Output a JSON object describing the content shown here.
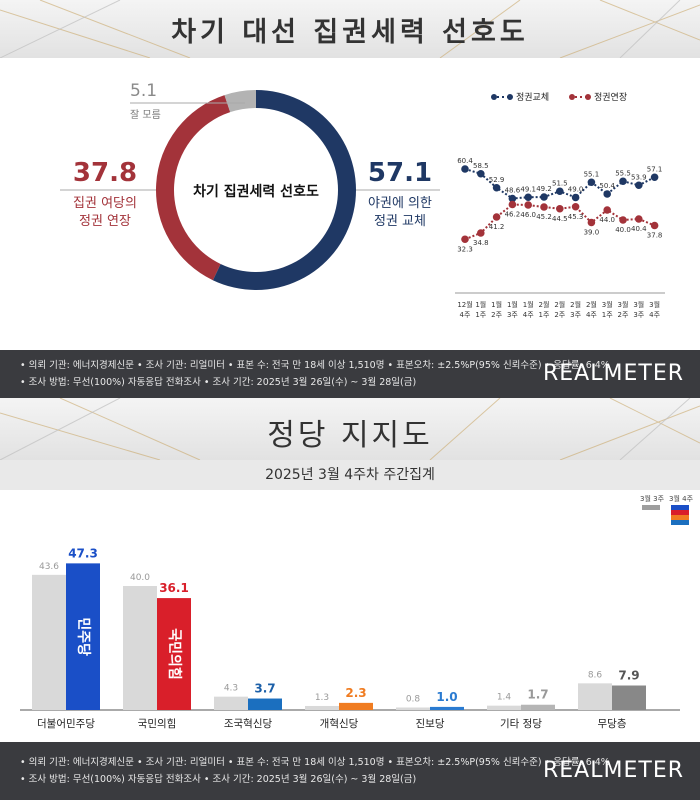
{
  "panel1": {
    "title": "차기 대선 집권세력 선호도",
    "donut": {
      "center_label": "차기 집권세력 선호도",
      "segments": [
        {
          "key": "change",
          "value": 57.1,
          "label": "야권에 의한\n정권 교체",
          "color": "#1f3864"
        },
        {
          "key": "extend",
          "value": 37.8,
          "label": "집권 여당의\n정권 연장",
          "color": "#a3333a"
        },
        {
          "key": "unknown",
          "value": 5.1,
          "label": "잘 모름",
          "color": "#b3b3b3"
        }
      ],
      "value_labels": {
        "change": "57.1",
        "extend": "37.8",
        "unknown": "5.1"
      },
      "text_labels": {
        "change_line1": "야권에 의한",
        "change_line2": "정권 교체",
        "extend_line1": "집권 여당의",
        "extend_line2": "정권 연장",
        "unknown": "잘 모름"
      }
    },
    "legend": {
      "change": "정권교체",
      "extend": "정권연장"
    },
    "chart_data": {
      "type": "line",
      "categories": [
        "12월 4주",
        "1월 1주",
        "1월 2주",
        "1월 3주",
        "1월 4주",
        "2월 1주",
        "2월 2주",
        "2월 3주",
        "2월 4주",
        "3월 1주",
        "3월 2주",
        "3월 3주",
        "3월 4주"
      ],
      "category_lines": [
        [
          "12월",
          "4주"
        ],
        [
          "1월",
          "1주"
        ],
        [
          "1월",
          "2주"
        ],
        [
          "1월",
          "3주"
        ],
        [
          "1월",
          "4주"
        ],
        [
          "2월",
          "1주"
        ],
        [
          "2월",
          "2주"
        ],
        [
          "2월",
          "3주"
        ],
        [
          "2월",
          "4주"
        ],
        [
          "3월",
          "1주"
        ],
        [
          "3월",
          "2주"
        ],
        [
          "3월",
          "3주"
        ],
        [
          "3월",
          "4주"
        ]
      ],
      "series": [
        {
          "name": "정권교체",
          "color": "#1f3864",
          "values": [
            60.4,
            58.5,
            52.9,
            48.6,
            49.1,
            49.2,
            51.5,
            49.0,
            55.1,
            50.4,
            55.5,
            53.9,
            57.1
          ]
        },
        {
          "name": "정권연장",
          "color": "#a3333a",
          "values": [
            32.3,
            34.8,
            41.2,
            46.2,
            46.0,
            45.2,
            44.5,
            45.3,
            39.0,
            44.0,
            40.0,
            40.4,
            37.8
          ]
        }
      ],
      "ylim": [
        28,
        64
      ]
    },
    "footer": {
      "line1": "• 의뢰 기관: 에너지경제신문  • 조사 기관: 리얼미터  • 표본 수: 전국 만 18세 이상 1,510명  • 표본오차: ±2.5%P(95% 신뢰수준)  • 응답률: 6.4%",
      "line2": "• 조사 방법: 무선(100%) 자동응답 전화조사  • 조사 기간: 2025년 3월 26일(수) ~ 3월 28일(금)",
      "logo": "REALMETER"
    }
  },
  "panel2": {
    "title": "정당 지지도",
    "subtitle": "2025년 3월 4주차 주간집계",
    "legend": {
      "prev": "3월 3주",
      "curr": "3월 4주"
    },
    "chart_data": {
      "type": "bar",
      "categories": [
        "더불어민주당",
        "국민의힘",
        "조국혁신당",
        "개혁신당",
        "진보당",
        "기타 정당",
        "무당층"
      ],
      "series": [
        {
          "name": "3월 3주",
          "values": [
            43.6,
            40.0,
            4.3,
            1.3,
            0.8,
            1.4,
            8.6
          ]
        },
        {
          "name": "3월 4주",
          "values": [
            47.3,
            36.1,
            3.7,
            2.3,
            1.0,
            1.7,
            7.9
          ]
        }
      ],
      "curr_colors": [
        "#1a4fc7",
        "#d91f2a",
        "#1b6fbf",
        "#f07c21",
        "#2a7bd1",
        "#b5b5b5",
        "#888888"
      ],
      "curr_label_colors": [
        "#1a4fc7",
        "#d91f2a",
        "#1b5fa8",
        "#f07c21",
        "#2a7bd1",
        "#999999",
        "#555555"
      ],
      "bar_texts": [
        "민주당",
        "국민의힘",
        "",
        "",
        "",
        "",
        ""
      ],
      "ylim": [
        0,
        50
      ]
    },
    "footer": {
      "line1": "• 의뢰 기관: 에너지경제신문  • 조사 기관: 리얼미터  • 표본 수: 전국 만 18세 이상 1,510명  • 표본오차: ±2.5%P(95% 신뢰수준)  • 응답률: 6.4%",
      "line2": "• 조사 방법: 무선(100%) 자동응답 전화조사  • 조사 기간: 2025년 3월 26일(수) ~ 3월 28일(금)",
      "logo": "REALMETER"
    }
  }
}
